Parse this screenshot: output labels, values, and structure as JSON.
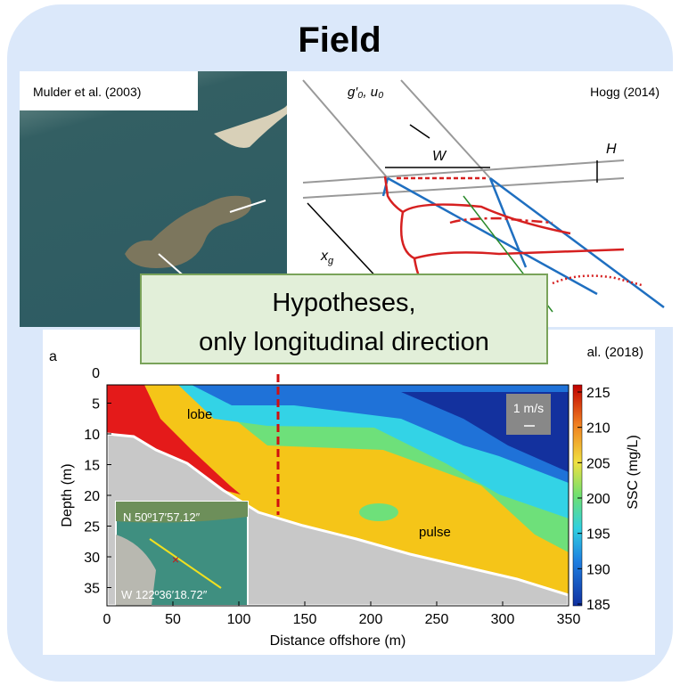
{
  "title": "Field",
  "photo": {
    "caption": "Mulder et al. (2003)"
  },
  "diagram": {
    "caption": "Hogg (2014)",
    "inflow": "g′₀, u₀",
    "width": "W",
    "height": "H",
    "distance": {
      "base": "x",
      "sub": "g"
    }
  },
  "callout": [
    "Hypotheses,",
    "only longitudinal direction"
  ],
  "figure": {
    "panel_label": "a",
    "source": "al. (2018)",
    "y_label": "Depth (m)",
    "x_label": "Distance offshore (m)",
    "colorbar_label": "SSC (mg/L)",
    "yticks": [
      0,
      5,
      10,
      15,
      20,
      25,
      30,
      35
    ],
    "xticks": [
      0,
      50,
      100,
      150,
      200,
      250,
      300,
      350
    ],
    "colorbar_ticks": [
      185,
      190,
      195,
      200,
      205,
      210,
      215
    ],
    "annotations": {
      "lobe": "lobe",
      "pulse": "pulse"
    },
    "scale": "1 m/s",
    "coords": [
      "N 50º17′57.12″",
      "W 122º36′18.72″"
    ]
  }
}
